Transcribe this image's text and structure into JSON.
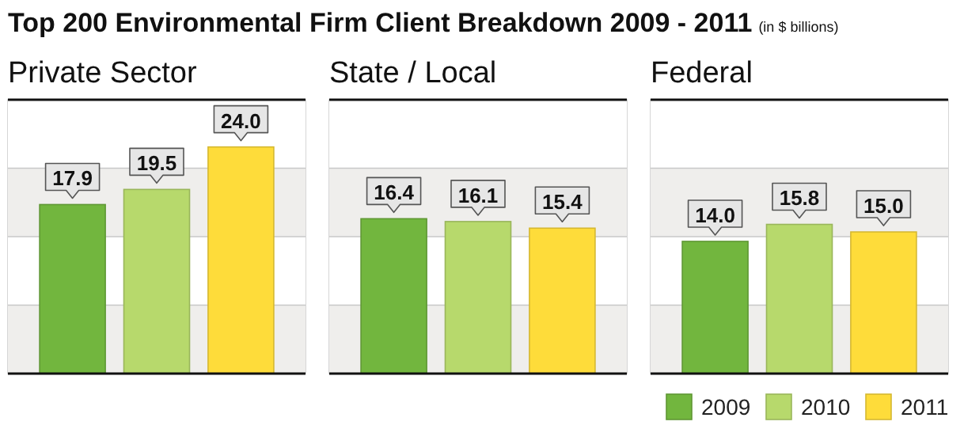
{
  "chart_data": [
    {
      "type": "bar",
      "title": "Private Sector",
      "annotations": [
        "Top 200 Environmental Firm Client Breakdown 2009 - 2011",
        "(in $ billions)"
      ],
      "categories": [
        null
      ],
      "series": [
        {
          "name": "2009",
          "color": "#72b63e",
          "values": [
            17.9
          ],
          "value_labels": [
            "17.9"
          ]
        },
        {
          "name": "2010",
          "color": "#b7d96c",
          "values": [
            19.5
          ],
          "value_labels": [
            "19.5"
          ]
        },
        {
          "name": "2011",
          "color": "#fedc3a",
          "values": [
            24.0
          ],
          "value_labels": [
            "24.0"
          ]
        }
      ],
      "ylim": [
        0,
        29
      ],
      "yticks": [
        {
          "value": 7.25,
          "label": null
        },
        {
          "value": 14.5,
          "label": null
        },
        {
          "value": 21.75,
          "label": null
        }
      ],
      "grid": "y",
      "legend": "bottom right"
    },
    {
      "type": "bar",
      "title": "State / Local",
      "categories": [
        null
      ],
      "series": [
        {
          "color": "#72b63e",
          "values": [
            16.4
          ],
          "value_labels": [
            "16.4"
          ]
        },
        {
          "color": "#b7d96c",
          "values": [
            16.1
          ],
          "value_labels": [
            "16.1"
          ]
        },
        {
          "color": "#fedc3a",
          "values": [
            15.4
          ],
          "value_labels": [
            "15.4"
          ]
        }
      ],
      "ylim": [
        0,
        29
      ],
      "yticks": [
        {
          "value": 7.25,
          "label": null
        },
        {
          "value": 14.5,
          "label": null
        },
        {
          "value": 21.75,
          "label": null
        }
      ],
      "grid": "y"
    },
    {
      "type": "bar",
      "title": "Federal",
      "categories": [
        null
      ],
      "series": [
        {
          "color": "#72b63e",
          "values": [
            14.0
          ],
          "value_labels": [
            "14.0"
          ]
        },
        {
          "color": "#b7d96c",
          "values": [
            15.8
          ],
          "value_labels": [
            "15.8"
          ]
        },
        {
          "color": "#fedc3a",
          "values": [
            15.0
          ],
          "value_labels": [
            "15.0"
          ]
        }
      ],
      "ylim": [
        0,
        29
      ],
      "yticks": [
        {
          "value": 7.25,
          "label": null
        },
        {
          "value": 14.5,
          "label": null
        },
        {
          "value": 21.75,
          "label": null
        }
      ],
      "grid": "y"
    }
  ]
}
